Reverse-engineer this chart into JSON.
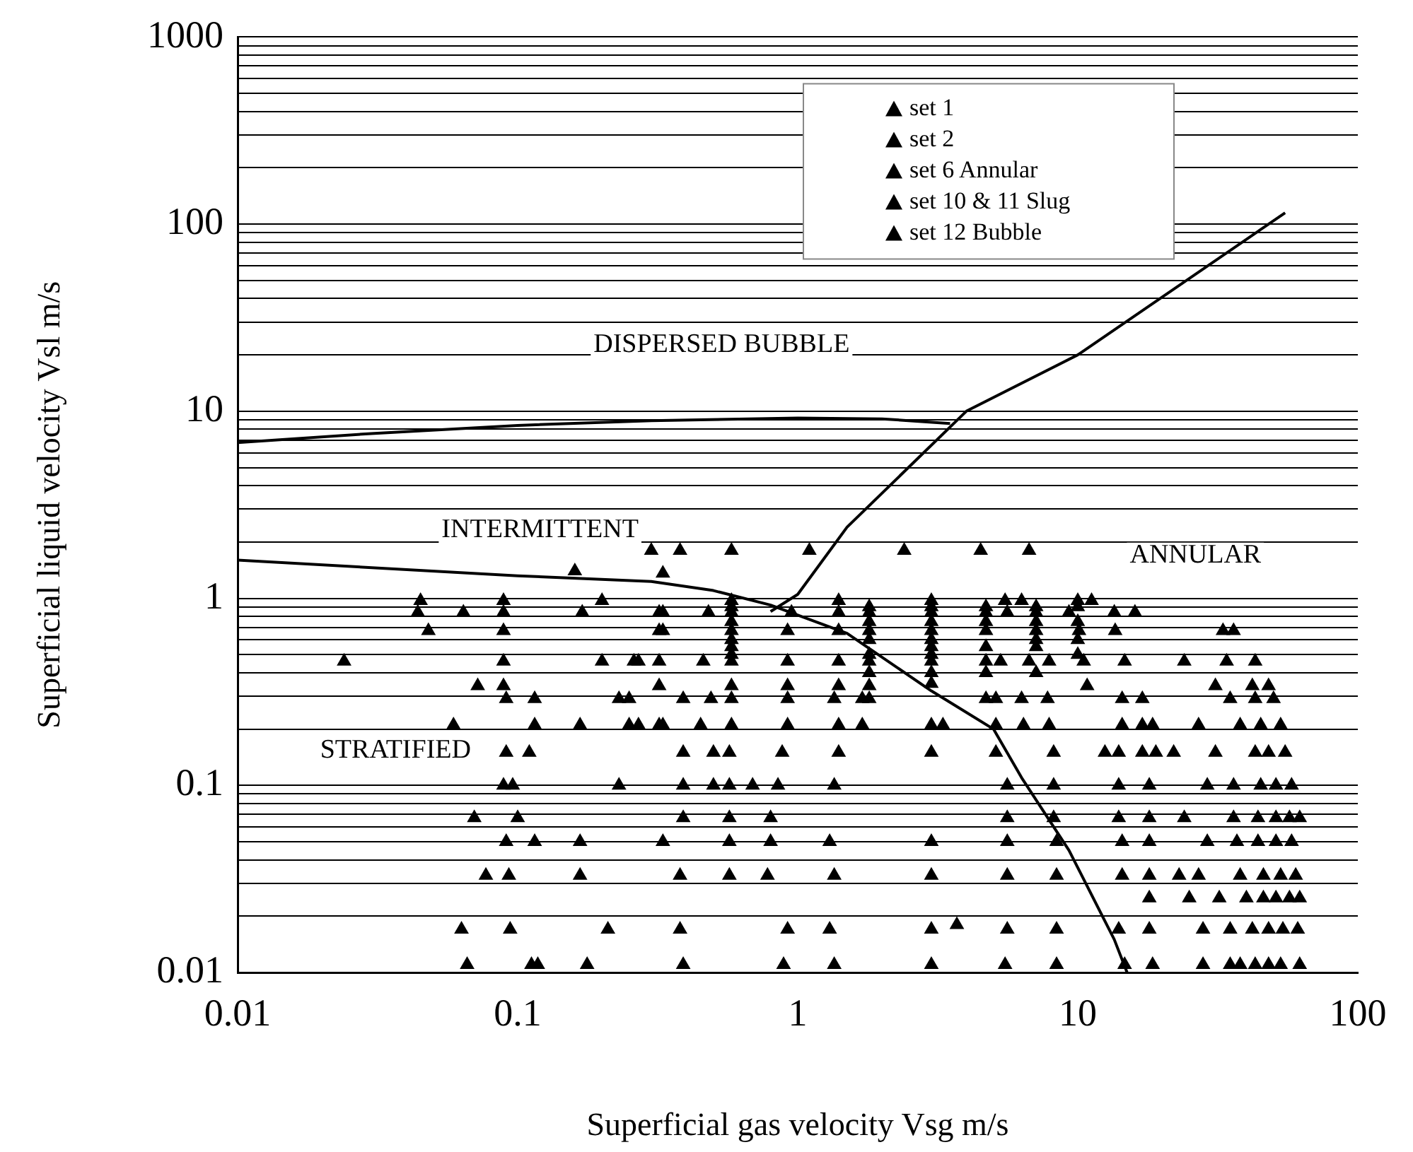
{
  "chart_data": {
    "type": "scatter",
    "xlabel": "Superficial gas velocity Vsg m/s",
    "ylabel": "Superficial liquid velocity Vsl m/s",
    "log": "xy",
    "grid": "y",
    "legend": "top right",
    "marker": "triangle",
    "xlim": [
      0.01,
      100
    ],
    "xticks": [
      0.01,
      0.1,
      1,
      10,
      100
    ],
    "ylim": [
      0.01,
      1000
    ],
    "yticks": [
      0.01,
      {
        "value": 0.02,
        "label": null
      },
      {
        "value": 0.03,
        "label": null
      },
      {
        "value": 0.04,
        "label": null
      },
      {
        "value": 0.05,
        "label": null
      },
      {
        "value": 0.06,
        "label": null
      },
      {
        "value": 0.07,
        "label": null
      },
      {
        "value": 0.08,
        "label": null
      },
      {
        "value": 0.09,
        "label": null
      },
      0.1,
      {
        "value": 0.2,
        "label": null
      },
      {
        "value": 0.3,
        "label": null
      },
      {
        "value": 0.4,
        "label": null
      },
      {
        "value": 0.5,
        "label": null
      },
      {
        "value": 0.6,
        "label": null
      },
      {
        "value": 0.7,
        "label": null
      },
      {
        "value": 0.8,
        "label": null
      },
      {
        "value": 0.9,
        "label": null
      },
      1,
      {
        "value": 2,
        "label": null
      },
      {
        "value": 3,
        "label": null
      },
      {
        "value": 4,
        "label": null
      },
      {
        "value": 5,
        "label": null
      },
      {
        "value": 6,
        "label": null
      },
      {
        "value": 7,
        "label": null
      },
      {
        "value": 8,
        "label": null
      },
      {
        "value": 9,
        "label": null
      },
      10,
      {
        "value": 20,
        "label": null
      },
      {
        "value": 30,
        "label": null
      },
      {
        "value": 40,
        "label": null
      },
      {
        "value": 50,
        "label": null
      },
      {
        "value": 60,
        "label": null
      },
      {
        "value": 70,
        "label": null
      },
      {
        "value": 80,
        "label": null
      },
      {
        "value": 90,
        "label": null
      },
      100,
      {
        "value": 200,
        "label": null
      },
      {
        "value": 300,
        "label": null
      },
      {
        "value": 400,
        "label": null
      },
      {
        "value": 500,
        "label": null
      },
      {
        "value": 600,
        "label": null
      },
      {
        "value": 700,
        "label": null
      },
      {
        "value": 800,
        "label": null
      },
      {
        "value": 900,
        "label": null
      },
      1000
    ],
    "annotations": [
      "DISPERSED BUBBLE",
      "INTERMITTENT",
      "ANNULAR",
      "STRATIFIED"
    ],
    "series": [
      {
        "name": "set 1",
        "color": "#000000",
        "x": [
          0.066,
          0.112,
          0.118,
          0.177,
          0.39,
          0.89,
          1.35,
          3.0,
          5.5,
          8.4,
          14.7,
          18.5,
          28,
          35,
          38,
          43,
          48,
          53,
          62,
          0.063,
          0.094,
          0.21,
          0.38,
          0.92,
          1.3,
          3.0,
          5.6,
          8.4,
          14,
          18,
          28,
          35,
          42,
          48,
          54,
          61,
          3.7,
          18,
          25,
          32,
          40,
          46,
          51,
          57,
          62,
          0.077,
          0.093,
          0.167,
          0.38,
          0.57,
          0.78,
          1.35,
          3.0,
          5.6,
          8.4,
          14.4,
          18,
          23,
          27,
          38,
          46,
          53,
          60,
          0.091,
          0.115,
          0.167,
          0.33,
          0.57,
          0.8,
          1.3,
          3.0,
          5.6,
          8.4,
          14.4,
          18,
          29,
          37,
          44,
          51,
          58
        ],
        "values": [
          0.011,
          0.011,
          0.011,
          0.011,
          0.011,
          0.011,
          0.011,
          0.011,
          0.011,
          0.011,
          0.011,
          0.011,
          0.011,
          0.011,
          0.011,
          0.011,
          0.011,
          0.011,
          0.011,
          0.017,
          0.017,
          0.017,
          0.017,
          0.017,
          0.017,
          0.017,
          0.017,
          0.017,
          0.017,
          0.017,
          0.017,
          0.017,
          0.017,
          0.017,
          0.017,
          0.017,
          0.018,
          0.025,
          0.025,
          0.025,
          0.025,
          0.025,
          0.025,
          0.025,
          0.025,
          0.033,
          0.033,
          0.033,
          0.033,
          0.033,
          0.033,
          0.033,
          0.033,
          0.033,
          0.033,
          0.033,
          0.033,
          0.033,
          0.033,
          0.033,
          0.033,
          0.033,
          0.033,
          0.05,
          0.05,
          0.05,
          0.05,
          0.05,
          0.05,
          0.05,
          0.05,
          0.05,
          0.05,
          0.05,
          0.05,
          0.05,
          0.05,
          0.05,
          0.05,
          0.05
        ]
      },
      {
        "name": "set 2",
        "color": "#000000",
        "x": [
          0.07,
          0.1,
          0.39,
          0.57,
          0.8,
          5.6,
          8.2,
          14,
          18,
          24,
          36,
          44,
          51,
          57,
          62,
          0.089,
          0.096,
          0.23,
          0.39,
          0.5,
          0.57,
          0.69,
          0.85,
          1.35,
          5.6,
          8.2,
          14,
          18,
          29,
          36,
          45,
          51,
          58,
          0.091,
          0.11,
          0.39,
          0.5,
          0.57,
          0.88,
          1.4,
          3.0,
          5.1,
          8.2,
          12.5,
          14,
          17,
          19,
          22,
          31,
          43,
          48,
          55,
          0.059,
          0.115,
          0.167,
          0.25,
          0.27,
          0.32,
          0.33,
          0.45,
          0.58,
          0.92,
          1.4,
          1.7,
          3.0,
          3.3,
          5.1,
          6.4,
          7.9,
          14.4,
          17,
          18.5,
          27,
          38,
          45,
          53
        ],
        "values": [
          0.067,
          0.067,
          0.067,
          0.067,
          0.067,
          0.067,
          0.067,
          0.067,
          0.067,
          0.067,
          0.067,
          0.067,
          0.067,
          0.067,
          0.067,
          0.1,
          0.1,
          0.1,
          0.1,
          0.1,
          0.1,
          0.1,
          0.1,
          0.1,
          0.1,
          0.1,
          0.1,
          0.1,
          0.1,
          0.1,
          0.1,
          0.1,
          0.1,
          0.15,
          0.15,
          0.15,
          0.15,
          0.15,
          0.15,
          0.15,
          0.15,
          0.15,
          0.15,
          0.15,
          0.15,
          0.15,
          0.15,
          0.15,
          0.15,
          0.15,
          0.15,
          0.15,
          0.21,
          0.21,
          0.21,
          0.21,
          0.21,
          0.21,
          0.21,
          0.21,
          0.21,
          0.21,
          0.21,
          0.21,
          0.21,
          0.21,
          0.21,
          0.21,
          0.21,
          0.21,
          0.21,
          0.21,
          0.21,
          0.21,
          0.21,
          0.21
        ]
      },
      {
        "name": "set 6 Annular",
        "color": "#000000",
        "x": [
          4.7,
          5.1,
          6.3,
          7.8,
          14.4,
          17,
          35,
          43,
          50,
          10.8,
          31,
          42,
          48,
          4.7,
          5.3,
          6.7,
          7.9,
          10.5,
          14.7,
          24,
          34,
          43,
          4.7,
          7.1,
          10.1,
          13.6,
          33,
          36,
          4.7,
          5.6,
          7.1,
          9.3,
          13.5,
          16,
          5.5,
          6.3,
          10,
          11.2,
          4.7,
          4.7,
          4.7,
          4.7,
          7.1,
          7.1,
          7.1,
          7.1,
          7.1,
          10,
          10,
          10,
          10
        ],
        "values": [
          0.29,
          0.29,
          0.29,
          0.29,
          0.29,
          0.29,
          0.29,
          0.29,
          0.29,
          0.34,
          0.34,
          0.34,
          0.34,
          0.46,
          0.46,
          0.46,
          0.46,
          0.46,
          0.46,
          0.46,
          0.46,
          0.46,
          0.67,
          0.67,
          0.67,
          0.67,
          0.67,
          0.67,
          0.84,
          0.84,
          0.84,
          0.84,
          0.84,
          0.84,
          0.97,
          0.97,
          0.97,
          0.97,
          0.4,
          0.55,
          0.75,
          0.9,
          0.4,
          0.55,
          0.6,
          0.75,
          0.9,
          0.5,
          0.6,
          0.75,
          0.9
        ]
      },
      {
        "name": "set 10 & 11 Slug",
        "color": "#000000",
        "x": [
          0.091,
          0.115,
          0.23,
          0.25,
          0.39,
          0.49,
          0.58,
          0.92,
          1.35,
          1.7,
          1.8,
          0.072,
          0.089,
          0.32,
          0.58,
          0.92,
          1.4,
          1.8,
          0.024,
          0.089,
          0.2,
          0.26,
          0.27,
          0.32,
          0.46,
          0.58,
          0.92,
          1.4,
          1.8,
          3.0,
          0.048,
          0.089,
          0.32,
          0.33,
          0.58,
          0.92,
          1.4,
          1.8,
          3.0,
          0.044,
          0.064,
          0.089,
          0.17,
          0.32,
          0.33,
          0.48,
          0.58,
          0.95,
          1.4,
          1.8,
          3.0,
          0.045,
          0.089,
          0.2,
          0.58,
          1.4,
          3.0,
          0.58,
          0.58,
          0.58,
          0.58,
          0.58,
          1.8,
          1.8,
          1.8,
          1.8,
          1.8,
          3.0,
          3.0,
          3.0,
          3.0,
          3.0,
          3.0,
          3.0
        ],
        "values": [
          0.29,
          0.29,
          0.29,
          0.29,
          0.29,
          0.29,
          0.29,
          0.29,
          0.29,
          0.29,
          0.29,
          0.34,
          0.34,
          0.34,
          0.34,
          0.34,
          0.34,
          0.34,
          0.46,
          0.46,
          0.46,
          0.46,
          0.46,
          0.46,
          0.46,
          0.46,
          0.46,
          0.46,
          0.46,
          0.46,
          0.67,
          0.67,
          0.67,
          0.67,
          0.67,
          0.67,
          0.67,
          0.67,
          0.67,
          0.84,
          0.84,
          0.84,
          0.84,
          0.84,
          0.84,
          0.84,
          0.84,
          0.84,
          0.84,
          0.84,
          0.84,
          0.97,
          0.97,
          0.97,
          0.97,
          0.97,
          0.97,
          0.5,
          0.55,
          0.6,
          0.75,
          0.9,
          0.4,
          0.5,
          0.6,
          0.75,
          0.9,
          0.35,
          0.4,
          0.5,
          0.55,
          0.6,
          0.75,
          0.9
        ]
      },
      {
        "name": "set 12 Bubble",
        "color": "#000000",
        "x": [
          0.33,
          0.16,
          0.3,
          0.38,
          0.58,
          1.1,
          2.4,
          4.5,
          6.7
        ],
        "values": [
          1.36,
          1.4,
          1.8,
          1.8,
          1.8,
          1.8,
          1.8,
          1.8,
          1.8
        ]
      },
      {
        "type": "line",
        "color": "#000000",
        "marker": "none",
        "line_style": "solid",
        "x": [
          0.01,
          0.03,
          0.1,
          0.3,
          1,
          2,
          3.5
        ],
        "values": [
          6.8,
          7.6,
          8.4,
          8.9,
          9.2,
          9.1,
          8.6
        ]
      },
      {
        "type": "line",
        "color": "#000000",
        "marker": "none",
        "line_style": "solid",
        "x": [
          0.01,
          0.1,
          0.3,
          0.5,
          0.8,
          1.5,
          3,
          5,
          6.3,
          9.3,
          13.5,
          15
        ],
        "values": [
          1.6,
          1.32,
          1.23,
          1.1,
          0.92,
          0.65,
          0.32,
          0.2,
          0.11,
          0.045,
          0.015,
          0.01
        ]
      },
      {
        "type": "line",
        "color": "#000000",
        "marker": "none",
        "line_style": "solid",
        "x": [
          0.8,
          1,
          1.5,
          4,
          10,
          55
        ],
        "values": [
          0.85,
          1.05,
          2.4,
          10,
          20,
          115
        ]
      }
    ]
  }
}
